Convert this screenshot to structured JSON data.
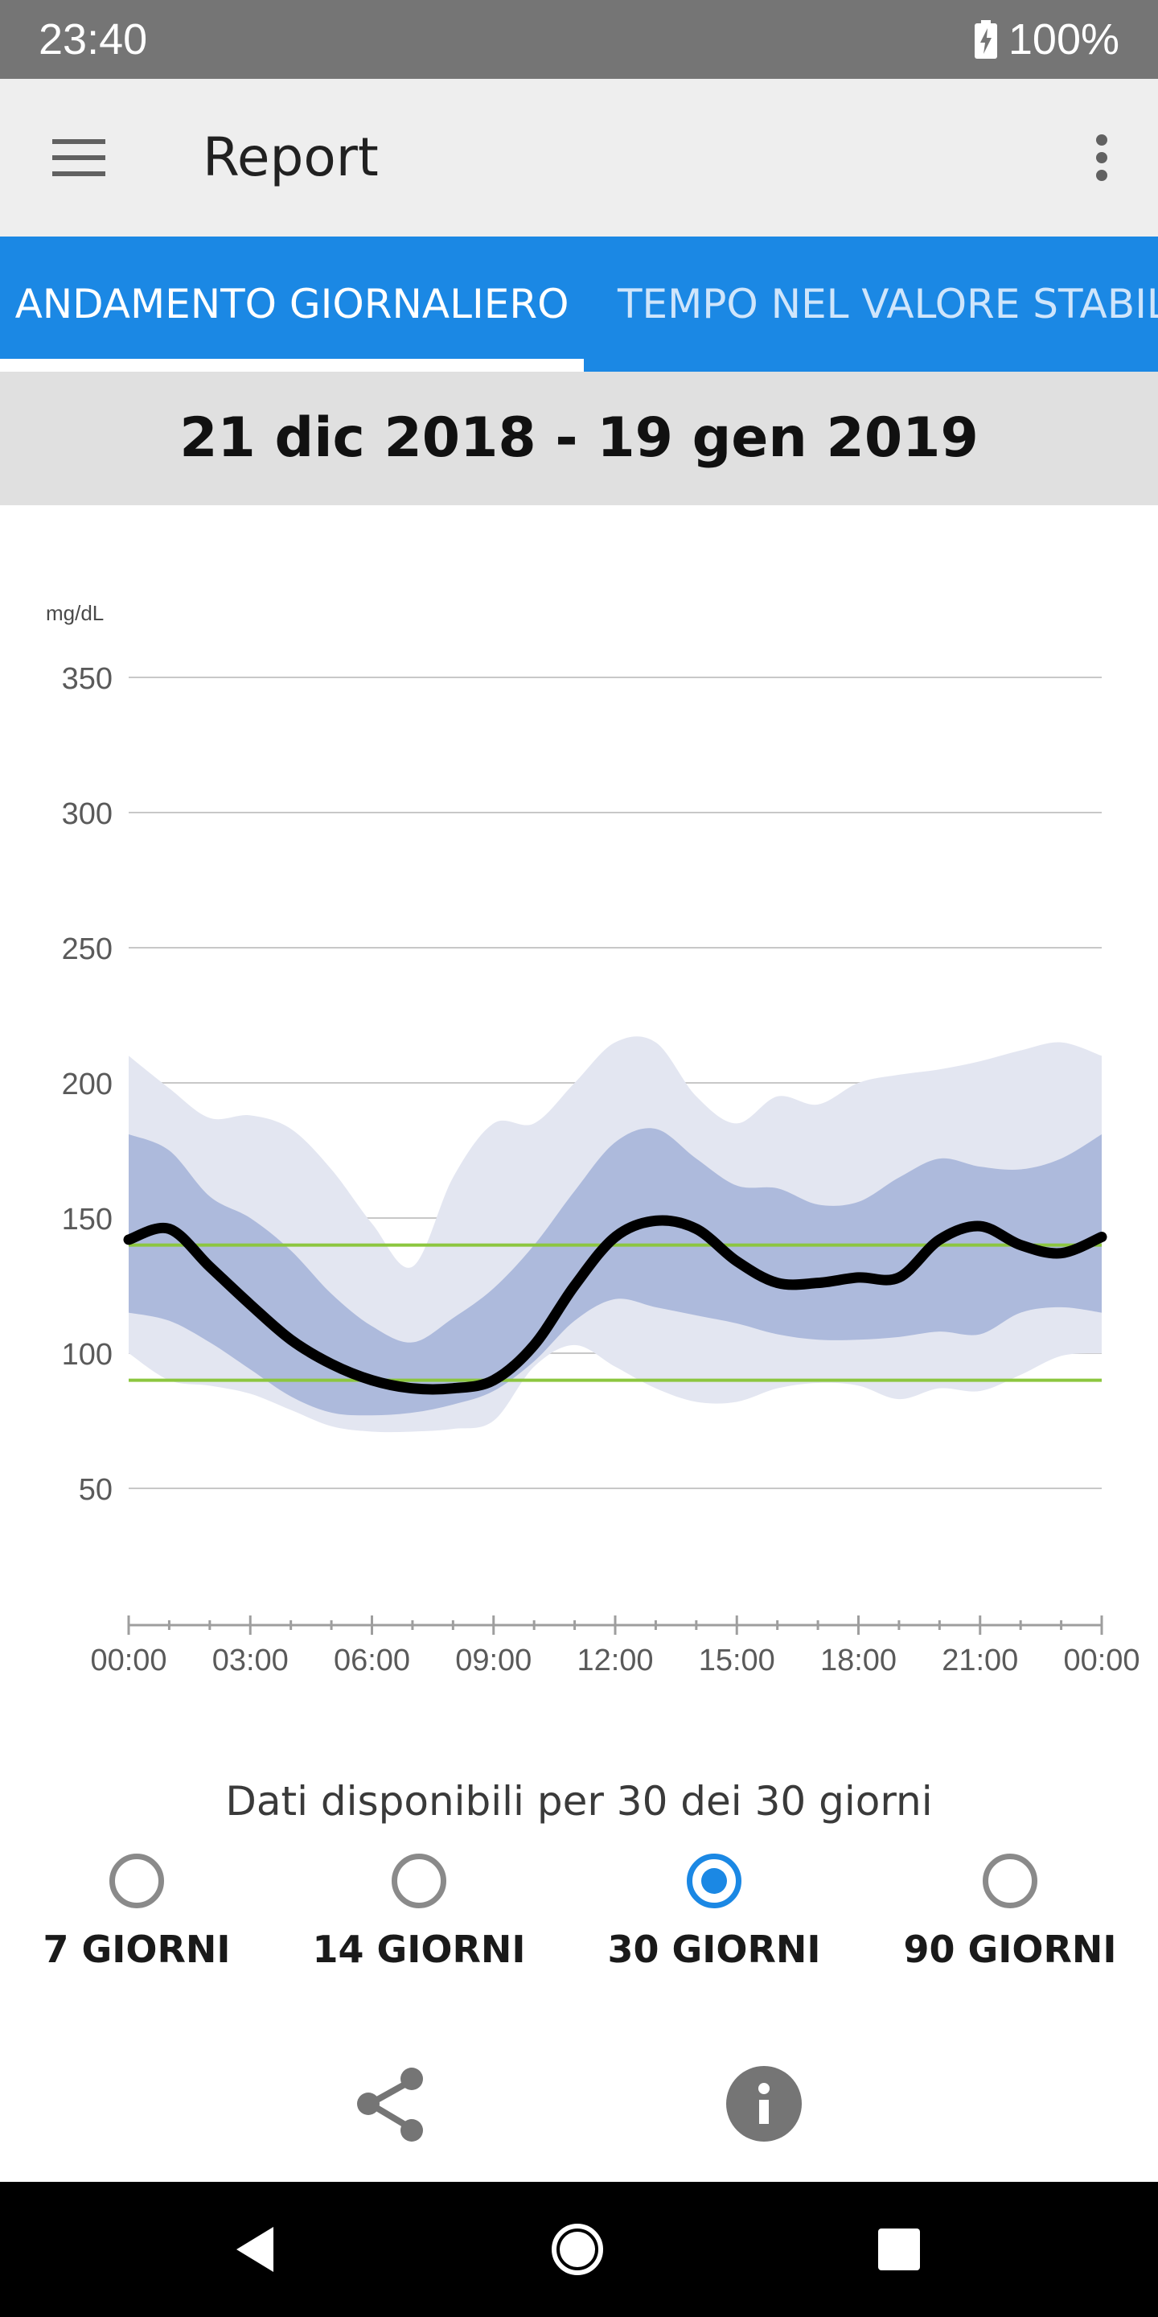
{
  "status_bar": {
    "time": "23:40",
    "battery": "100%"
  },
  "app_bar": {
    "title": "Report",
    "menu_icon": "hamburger-menu-icon",
    "overflow_icon": "more-vert-icon"
  },
  "tabs": [
    {
      "label": "ANDAMENTO GIORNALIERO",
      "selected": true
    },
    {
      "label": "TEMPO NEL VALORE STABILITO",
      "selected": false
    }
  ],
  "date_range": "21 dic 2018 - 19 gen 2019",
  "chart_data": {
    "type": "area",
    "ylabel": "mg/dL",
    "ylim": [
      0,
      350
    ],
    "yticks": [
      "350",
      "300",
      "250",
      "200",
      "150",
      "100",
      "50"
    ],
    "xticks": [
      "00:00",
      "03:00",
      "06:00",
      "09:00",
      "12:00",
      "15:00",
      "18:00",
      "21:00",
      "00:00"
    ],
    "target_range": [
      90,
      140
    ],
    "colors": {
      "outer_band": "#e3e6f1",
      "inner_band": "#adbadc",
      "median": "#000000",
      "target": "#8cc63f",
      "grid": "#c8c8c8"
    },
    "x_hours": [
      0,
      1,
      2,
      3,
      4,
      5,
      6,
      7,
      8,
      9,
      10,
      11,
      12,
      13,
      14,
      15,
      16,
      17,
      18,
      19,
      20,
      21,
      22,
      23,
      24
    ],
    "series": [
      {
        "name": "p90",
        "values": [
          210,
          198,
          187,
          188,
          183,
          168,
          148,
          132,
          165,
          185,
          185,
          200,
          215,
          215,
          195,
          185,
          195,
          192,
          200,
          203,
          205,
          208,
          212,
          215,
          210
        ]
      },
      {
        "name": "p75",
        "values": [
          181,
          175,
          158,
          150,
          138,
          122,
          110,
          104,
          113,
          124,
          140,
          160,
          178,
          183,
          172,
          162,
          161,
          155,
          156,
          165,
          172,
          169,
          168,
          172,
          181
        ]
      },
      {
        "name": "median",
        "values": [
          142,
          146,
          132,
          118,
          105,
          96,
          90,
          87,
          87,
          90,
          103,
          125,
          143,
          149,
          146,
          134,
          126,
          126,
          128,
          128,
          142,
          147,
          140,
          137,
          143
        ]
      },
      {
        "name": "p25",
        "values": [
          115,
          112,
          104,
          94,
          84,
          78,
          77,
          78,
          81,
          86,
          97,
          112,
          120,
          117,
          114,
          111,
          107,
          105,
          105,
          106,
          108,
          107,
          115,
          117,
          115
        ]
      },
      {
        "name": "p10",
        "values": [
          100,
          90,
          88,
          85,
          79,
          73,
          71,
          71,
          72,
          75,
          95,
          103,
          95,
          87,
          82,
          82,
          87,
          89,
          88,
          83,
          87,
          86,
          92,
          99,
          100
        ]
      }
    ]
  },
  "data_available": "Dati disponibili per 30 dei 30 giorni",
  "range_options": [
    {
      "label": "7 GIORNI",
      "selected": false
    },
    {
      "label": "14 GIORNI",
      "selected": false
    },
    {
      "label": "30 GIORNI",
      "selected": true
    },
    {
      "label": "90 GIORNI",
      "selected": false
    }
  ],
  "actions": {
    "share_icon": "share-icon",
    "info_icon": "info-icon"
  },
  "nav_bar": {
    "back_icon": "back-triangle-icon",
    "home_icon": "home-circle-icon",
    "recents_icon": "recents-square-icon"
  }
}
